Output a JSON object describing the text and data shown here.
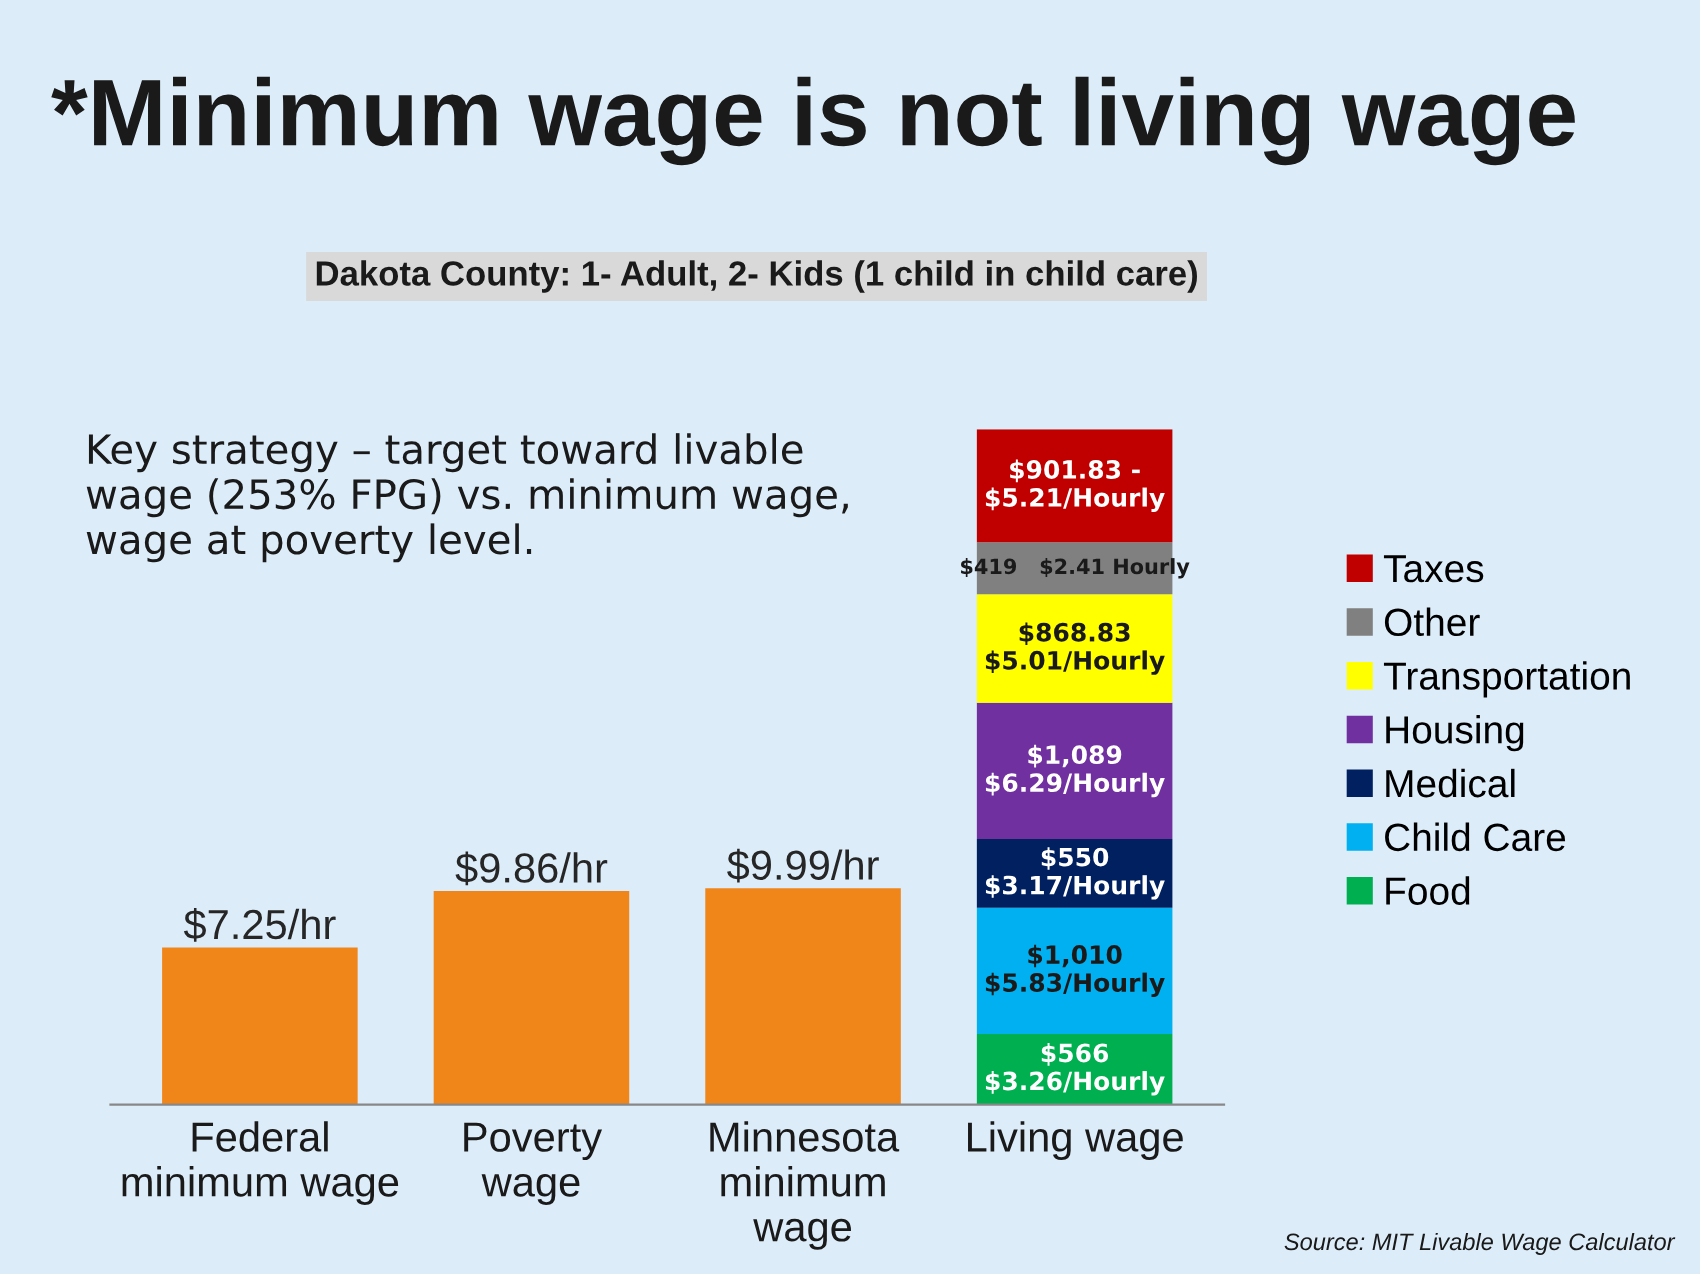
{
  "chart_data": {
    "type": "bar",
    "title": "*Minimum wage is not living wage",
    "subtitle": "Dakota County: 1- Adult, 2- Kids (1 child in child care)",
    "categories": [
      "Federal\nminimum wage",
      "Poverty\nwage",
      "Minnesota\nminimum\nwage",
      "Living wage"
    ],
    "stacked": true,
    "series": [
      {
        "color": "#f0861a",
        "values": [
          7.25,
          9.86,
          9.99,
          null
        ],
        "value_labels": [
          "$7.25/hr",
          "$9.86/hr",
          "$9.99/hr",
          null
        ]
      },
      {
        "name": "Food",
        "color": "#00b050",
        "values": [
          null,
          null,
          null,
          3.26
        ],
        "value_labels": [
          null,
          null,
          null,
          "$566\n$3.26/Hourly"
        ]
      },
      {
        "name": "Child Care",
        "color": "#00b0f0",
        "values": [
          null,
          null,
          null,
          5.83
        ],
        "value_labels": [
          null,
          null,
          null,
          "$1,010\n$5.83/Hourly"
        ]
      },
      {
        "name": "Medical",
        "color": "#002060",
        "values": [
          null,
          null,
          null,
          3.17
        ],
        "value_labels": [
          null,
          null,
          null,
          "$550\n$3.17/Hourly"
        ]
      },
      {
        "name": "Housing",
        "color": "#7030a0",
        "values": [
          null,
          null,
          null,
          6.29
        ],
        "value_labels": [
          null,
          null,
          null,
          "$1,089\n$6.29/Hourly"
        ]
      },
      {
        "name": "Transportation",
        "color": "#ffff00",
        "values": [
          null,
          null,
          null,
          5.01
        ],
        "value_labels": [
          null,
          null,
          null,
          "$868.83\n$5.01/Hourly"
        ]
      },
      {
        "name": "Other",
        "color": "#808080",
        "values": [
          null,
          null,
          null,
          2.41
        ],
        "value_labels": [
          null,
          null,
          null,
          "$419   $2.41 Hourly"
        ]
      },
      {
        "name": "Taxes",
        "color": "#c00000",
        "values": [
          null,
          null,
          null,
          5.21
        ],
        "value_labels": [
          null,
          null,
          null,
          "$901.83 -\n$5.21/Hourly"
        ]
      }
    ],
    "legend": "right",
    "annotations": [
      "Key strategy – target toward livable wage (253% FPG) vs. minimum wage, wage at poverty level.",
      "Source: MIT Livable Wage Calculator"
    ]
  }
}
